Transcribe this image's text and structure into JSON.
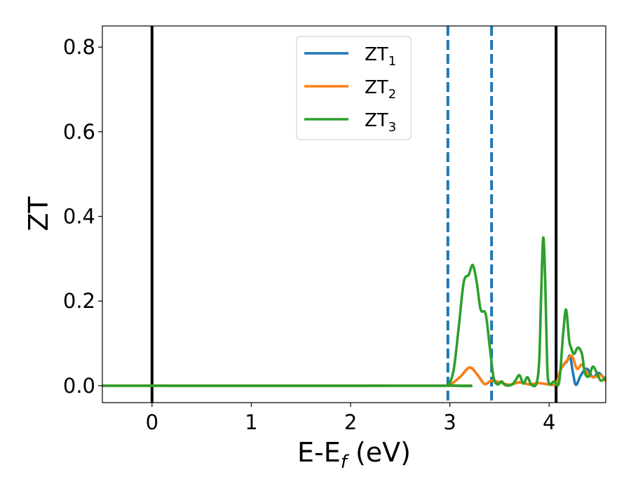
{
  "chart_data": {
    "type": "line",
    "xlabel": {
      "base": "E-E",
      "sub": "f",
      "suffix": " (eV)"
    },
    "ylabel": "ZT",
    "xlim": [
      -0.5,
      4.57
    ],
    "ylim": [
      -0.04,
      0.85
    ],
    "xticks": [
      0,
      1,
      2,
      3,
      4
    ],
    "xtick_labels": [
      "0",
      "1",
      "2",
      "3",
      "4"
    ],
    "yticks": [
      0.0,
      0.2,
      0.4,
      0.6,
      0.8
    ],
    "ytick_labels": [
      "0.0",
      "0.2",
      "0.4",
      "0.6",
      "0.8"
    ],
    "grid": false,
    "legend_position": "top-center",
    "vlines": [
      {
        "x": 0.0,
        "style": "solid",
        "color": "#000000"
      },
      {
        "x": 4.07,
        "style": "solid",
        "color": "#000000"
      },
      {
        "x": 2.98,
        "style": "dashed",
        "color": "#1f77b4"
      },
      {
        "x": 3.42,
        "style": "dashed",
        "color": "#1f77b4"
      }
    ],
    "series": [
      {
        "name": "ZT",
        "sub": "1",
        "color": "#1f77b4",
        "points": [
          [
            -0.5,
            0
          ],
          [
            2.95,
            0
          ],
          [
            3.0,
            0.002
          ],
          [
            3.1,
            0.02
          ],
          [
            3.2,
            0.043
          ],
          [
            3.28,
            0.025
          ],
          [
            3.35,
            0.004
          ],
          [
            3.42,
            0.012
          ],
          [
            3.5,
            0.008
          ],
          [
            3.6,
            0.002
          ],
          [
            3.7,
            0.008
          ],
          [
            3.8,
            0.003
          ],
          [
            3.9,
            0.006
          ],
          [
            4.0,
            0.003
          ],
          [
            4.07,
            0.005
          ],
          [
            4.12,
            0.04
          ],
          [
            4.18,
            0.058
          ],
          [
            4.21,
            0.07
          ],
          [
            4.24,
            0.03
          ],
          [
            4.27,
            0.002
          ],
          [
            4.32,
            0.025
          ],
          [
            4.38,
            0.04
          ],
          [
            4.44,
            0.02
          ],
          [
            4.5,
            0.03
          ],
          [
            4.57,
            0.012
          ]
        ]
      },
      {
        "name": "ZT",
        "sub": "2",
        "color": "#ff7f0e",
        "points": [
          [
            -0.5,
            0
          ],
          [
            2.95,
            0
          ],
          [
            3.0,
            0.002
          ],
          [
            3.1,
            0.02
          ],
          [
            3.2,
            0.043
          ],
          [
            3.28,
            0.025
          ],
          [
            3.35,
            0.004
          ],
          [
            3.42,
            0.012
          ],
          [
            3.5,
            0.008
          ],
          [
            3.6,
            0.002
          ],
          [
            3.7,
            0.008
          ],
          [
            3.8,
            0.003
          ],
          [
            3.9,
            0.006
          ],
          [
            4.0,
            0.003
          ],
          [
            4.07,
            0.005
          ],
          [
            4.12,
            0.04
          ],
          [
            4.18,
            0.06
          ],
          [
            4.23,
            0.07
          ],
          [
            4.28,
            0.04
          ],
          [
            4.33,
            0.05
          ],
          [
            4.38,
            0.03
          ],
          [
            4.45,
            0.02
          ],
          [
            4.52,
            0.025
          ],
          [
            4.57,
            0.01
          ]
        ]
      },
      {
        "name": "ZT",
        "sub": "3",
        "color": "#2ca02c",
        "points": [
          [
            -0.5,
            0
          ],
          [
            2.95,
            0
          ],
          [
            2.99,
            0.003
          ],
          [
            3.04,
            0.04
          ],
          [
            3.09,
            0.14
          ],
          [
            3.14,
            0.245
          ],
          [
            3.19,
            0.262
          ],
          [
            3.23,
            0.285
          ],
          [
            3.27,
            0.245
          ],
          [
            3.31,
            0.18
          ],
          [
            3.36,
            0.17
          ],
          [
            3.4,
            0.095
          ],
          [
            3.44,
            0.02
          ],
          [
            3.48,
            0.003
          ],
          [
            3.52,
            0.01
          ],
          [
            3.56,
            0.001
          ],
          [
            3.62,
            0.002
          ],
          [
            3.66,
            0.012
          ],
          [
            3.7,
            0.025
          ],
          [
            3.74,
            0.005
          ],
          [
            3.78,
            0.02
          ],
          [
            3.82,
            0.003
          ],
          [
            3.87,
            0.004
          ],
          [
            3.9,
            0.06
          ],
          [
            3.92,
            0.22
          ],
          [
            3.94,
            0.35
          ],
          [
            3.96,
            0.25
          ],
          [
            3.98,
            0.05
          ],
          [
            4.0,
            0.005
          ],
          [
            4.05,
            0.01
          ],
          [
            4.1,
            0.008
          ],
          [
            4.14,
            0.12
          ],
          [
            4.17,
            0.18
          ],
          [
            4.2,
            0.11
          ],
          [
            4.22,
            0.09
          ],
          [
            4.25,
            0.075
          ],
          [
            4.29,
            0.09
          ],
          [
            4.33,
            0.075
          ],
          [
            4.36,
            0.03
          ],
          [
            4.4,
            0.022
          ],
          [
            4.44,
            0.045
          ],
          [
            4.48,
            0.03
          ],
          [
            4.52,
            0.012
          ],
          [
            4.57,
            0.02
          ]
        ]
      }
    ]
  }
}
